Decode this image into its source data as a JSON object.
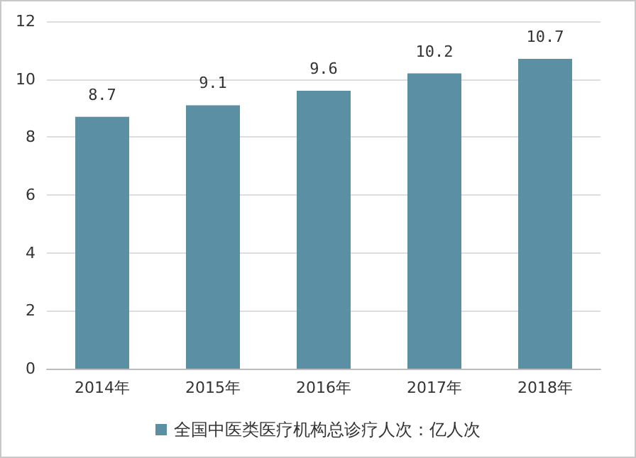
{
  "chart_data": {
    "type": "bar",
    "categories": [
      "2014年",
      "2015年",
      "2016年",
      "2017年",
      "2018年"
    ],
    "series": [
      {
        "name": "全国中医类医疗机构总诊疗人次：亿人次",
        "color": "#5b8fa3",
        "values": [
          8.7,
          9.1,
          9.6,
          10.2,
          10.7
        ]
      }
    ],
    "ylim": [
      0,
      12
    ],
    "yticks": [
      0,
      2,
      4,
      6,
      8,
      10,
      12
    ],
    "grid": "y",
    "legend": "bottom",
    "data_labels": true
  }
}
